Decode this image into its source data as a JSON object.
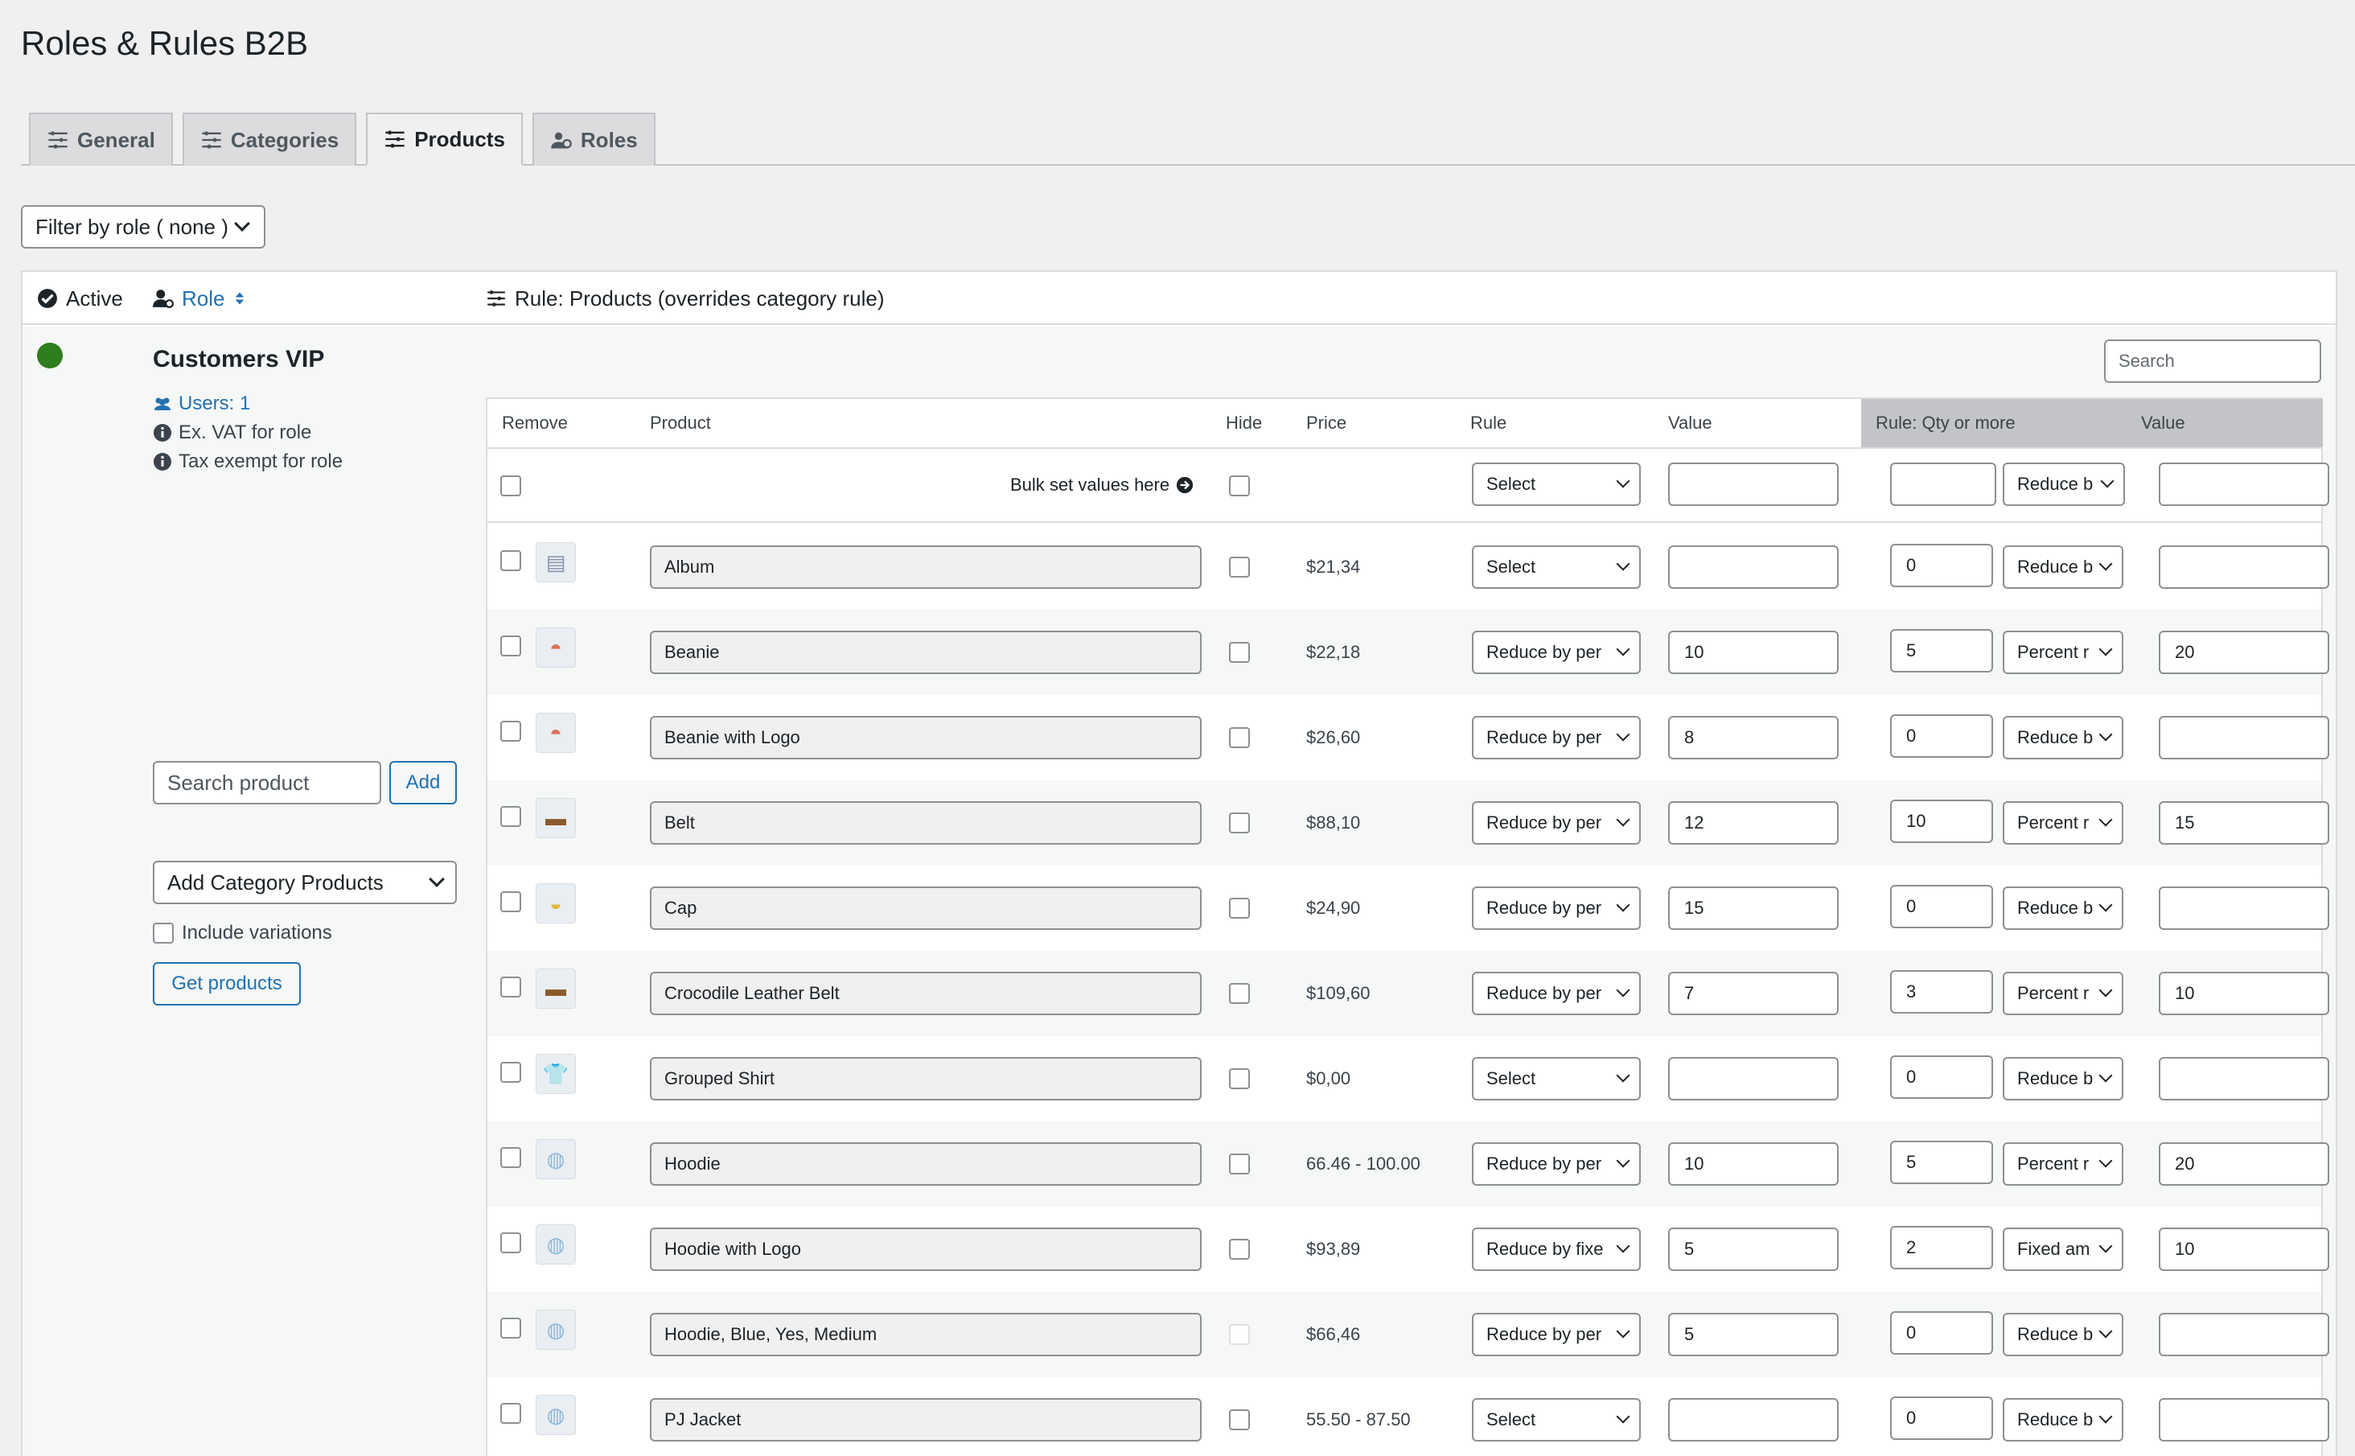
{
  "page": {
    "title": "Roles & Rules B2B"
  },
  "tabs": [
    {
      "label": "General",
      "icon": "sliders-icon",
      "active": false
    },
    {
      "label": "Categories",
      "icon": "sliders-icon",
      "active": false
    },
    {
      "label": "Products",
      "icon": "sliders-icon",
      "active": true
    },
    {
      "label": "Roles",
      "icon": "users-icon",
      "active": false
    }
  ],
  "filter": {
    "label": "Filter by role ( none )"
  },
  "panel_header": {
    "active_label": "Active",
    "role_label": "Role",
    "rule_label": "Rule: Products (overrides category rule)"
  },
  "role": {
    "name": "Customers VIP",
    "status_color": "#2e7d1e",
    "users": "Users: 1",
    "ex_vat": "Ex. VAT for role",
    "tax_exempt": "Tax exempt for role",
    "search_placeholder": "Search product",
    "add_label": "Add",
    "category_select": "Add Category Products",
    "include_variations": "Include variations",
    "get_products": "Get products"
  },
  "search": {
    "placeholder": "Search"
  },
  "grid": {
    "headers": {
      "remove": "Remove",
      "product": "Product",
      "hide": "Hide",
      "price": "Price",
      "rule": "Rule",
      "value": "Value",
      "qty_rule": "Rule: Qty or more",
      "qty_value": "Value"
    },
    "bulk": {
      "label": "Bulk set values here",
      "rule": "Select",
      "value": "",
      "qty": "",
      "qty_rule": "Reduce b",
      "qty_value": ""
    },
    "rows": [
      {
        "product": "Album",
        "icon": "album-icon",
        "price": "$21,34",
        "rule": "Select",
        "value": "",
        "qty": "0",
        "qty_rule": "Reduce b",
        "qty_value": ""
      },
      {
        "product": "Beanie",
        "icon": "beanie-icon",
        "price": "$22,18",
        "rule": "Reduce by per",
        "value": "10",
        "qty": "5",
        "qty_rule": "Percent r",
        "qty_value": "20"
      },
      {
        "product": "Beanie with Logo",
        "icon": "beanie-icon",
        "price": "$26,60",
        "rule": "Reduce by per",
        "value": "8",
        "qty": "0",
        "qty_rule": "Reduce b",
        "qty_value": ""
      },
      {
        "product": "Belt",
        "icon": "belt-icon",
        "price": "$88,10",
        "rule": "Reduce by per",
        "value": "12",
        "qty": "10",
        "qty_rule": "Percent r",
        "qty_value": "15"
      },
      {
        "product": "Cap",
        "icon": "cap-icon",
        "price": "$24,90",
        "rule": "Reduce by per",
        "value": "15",
        "qty": "0",
        "qty_rule": "Reduce b",
        "qty_value": ""
      },
      {
        "product": "Crocodile Leather Belt",
        "icon": "belt-icon",
        "price": "$109,60",
        "rule": "Reduce by per",
        "value": "7",
        "qty": "3",
        "qty_rule": "Percent r",
        "qty_value": "10"
      },
      {
        "product": "Grouped Shirt",
        "icon": "shirt-icon",
        "price": "$0,00",
        "rule": "Select",
        "value": "",
        "qty": "0",
        "qty_rule": "Reduce b",
        "qty_value": ""
      },
      {
        "product": "Hoodie",
        "icon": "hoodie-icon",
        "price": "66.46 - 100.00",
        "rule": "Reduce by per",
        "value": "10",
        "qty": "5",
        "qty_rule": "Percent r",
        "qty_value": "20"
      },
      {
        "product": "Hoodie with Logo",
        "icon": "hoodie-icon",
        "price": "$93,89",
        "rule": "Reduce by fixe",
        "value": "5",
        "qty": "2",
        "qty_rule": "Fixed am",
        "qty_value": "10"
      },
      {
        "product": "Hoodie, Blue, Yes, Medium",
        "icon": "hoodie-icon",
        "price": "$66,46",
        "rule": "Reduce by per",
        "value": "5",
        "qty": "0",
        "qty_rule": "Reduce b",
        "qty_value": ""
      },
      {
        "product": "PJ Jacket",
        "icon": "jacket-icon",
        "price": "55.50 - 87.50",
        "rule": "Select",
        "value": "",
        "qty": "0",
        "qty_rule": "Reduce b",
        "qty_value": ""
      }
    ]
  }
}
